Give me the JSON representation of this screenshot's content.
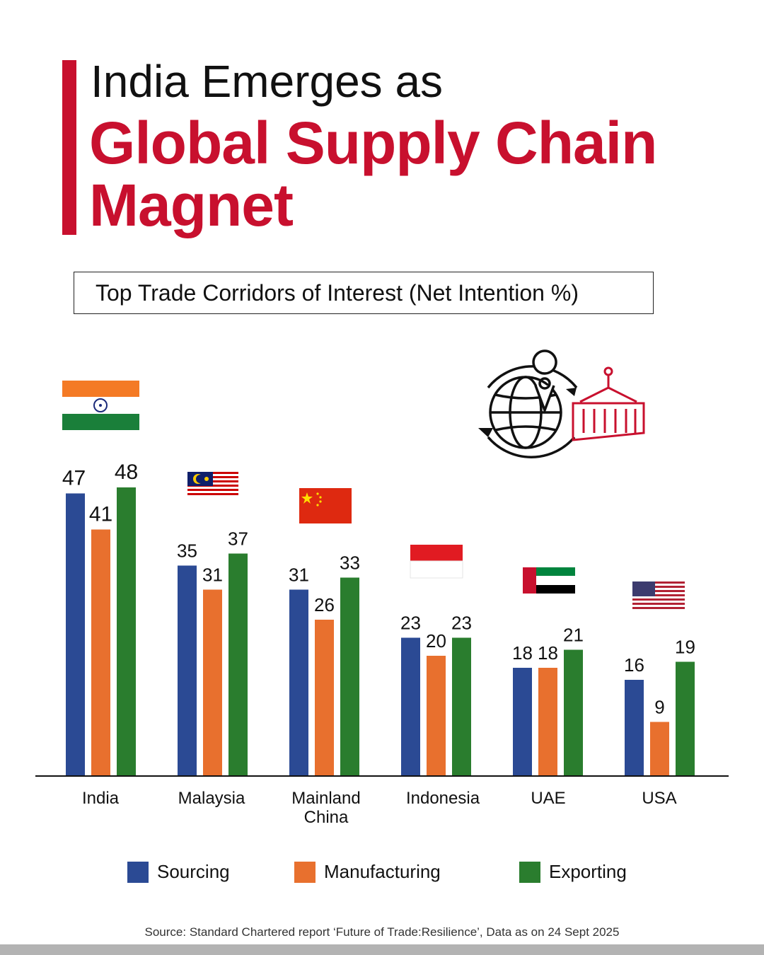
{
  "header": {
    "title_line1": "India Emerges as",
    "title_line2": "Global Supply Chain Magnet"
  },
  "chart_data": {
    "type": "bar",
    "title": "Top Trade Corridors of Interest (Net Intention %)",
    "categories": [
      "India",
      "Malaysia",
      "Mainland China",
      "Indonesia",
      "UAE",
      "USA"
    ],
    "series": [
      {
        "name": "Sourcing",
        "values": [
          47,
          35,
          31,
          23,
          18,
          16
        ],
        "color": "#2b4a94"
      },
      {
        "name": "Manufacturing",
        "values": [
          41,
          31,
          26,
          20,
          18,
          9
        ],
        "color": "#e8702e"
      },
      {
        "name": "Exporting",
        "values": [
          48,
          37,
          33,
          23,
          21,
          19
        ],
        "color": "#2a7d2e"
      }
    ],
    "ylim": [
      0,
      50
    ],
    "grid": false,
    "legend_position": "bottom",
    "flags": [
      "india-flag",
      "malaysia-flag",
      "china-flag",
      "indonesia-flag",
      "uae-flag",
      "usa-flag"
    ]
  },
  "decoration": {
    "icon": "globe-container-cycle-icon",
    "accent": "#c8102e"
  },
  "footer": {
    "source": "Source: Standard Chartered report ‘Future of Trade:Resilience’, Data as on 24 Sept 2025"
  }
}
